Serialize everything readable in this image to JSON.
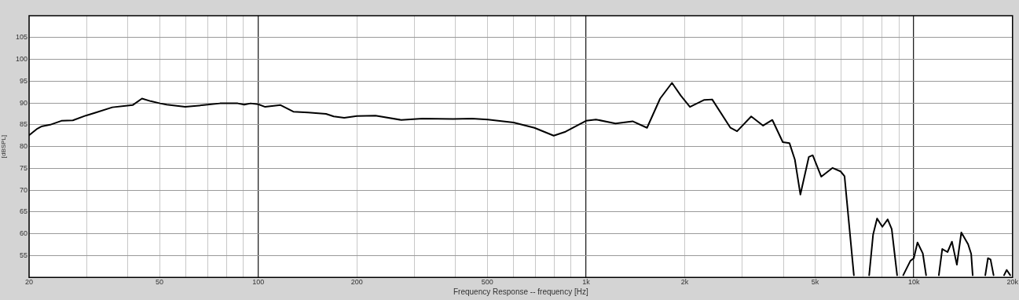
{
  "chart_data": {
    "type": "line",
    "xlabel": "Frequency Response -- frequency [Hz]",
    "ylabel": "[dBSPL]",
    "log": "x",
    "grid": true,
    "legend": false,
    "marker": "none",
    "line_style": "solid",
    "xlim": [
      20,
      20000
    ],
    "ylim": [
      50,
      110
    ],
    "xticks": [
      20,
      {
        "value": 30,
        "label": null
      },
      {
        "value": 40,
        "label": null
      },
      50,
      {
        "value": 60,
        "label": null
      },
      {
        "value": 70,
        "label": null
      },
      {
        "value": 80,
        "label": null
      },
      {
        "value": 90,
        "label": null
      },
      100,
      200,
      {
        "value": 300,
        "label": null
      },
      {
        "value": 400,
        "label": null
      },
      500,
      {
        "value": 600,
        "label": null
      },
      {
        "value": 700,
        "label": null
      },
      {
        "value": 800,
        "label": null
      },
      {
        "value": 900,
        "label": null
      },
      {
        "value": 1000,
        "label": "1k"
      },
      {
        "value": 2000,
        "label": "2k"
      },
      {
        "value": 3000,
        "label": null
      },
      {
        "value": 4000,
        "label": null
      },
      {
        "value": 5000,
        "label": "5k"
      },
      {
        "value": 6000,
        "label": null
      },
      {
        "value": 7000,
        "label": null
      },
      {
        "value": 8000,
        "label": null
      },
      {
        "value": 9000,
        "label": null
      },
      {
        "value": 10000,
        "label": "10k"
      },
      {
        "value": 20000,
        "label": "20k"
      }
    ],
    "yticks": [
      55,
      60,
      65,
      70,
      75,
      80,
      85,
      90,
      95,
      100,
      105
    ],
    "series": [
      {
        "color": "#000000",
        "x": [
          20,
          21.2,
          21.8,
          23.2,
          25.1,
          27.2,
          29.8,
          32,
          35.9,
          39.9,
          41.4,
          44.2,
          47,
          50.2,
          52.6,
          59.9,
          68.2,
          76.5,
          86.6,
          90.7,
          94.8,
          100,
          105,
          117,
          128,
          142,
          161,
          170,
          183,
          200,
          228,
          273,
          317,
          393,
          449,
          502,
          601,
          696,
          797,
          866,
          1000,
          1072,
          1230,
          1387,
          1535,
          1683,
          1829,
          1945,
          2075,
          2295,
          2426,
          2758,
          2889,
          3191,
          3469,
          3702,
          3984,
          4174,
          4336,
          4507,
          4782,
          4915,
          5218,
          5651,
          5979,
          6146,
          6563,
          6900,
          7307,
          7512,
          7725,
          8016,
          8322,
          8561,
          8892,
          9100,
          9283,
          9762,
          10000,
          10260,
          10650,
          10900,
          11400,
          11920,
          12210,
          12670,
          13070,
          13530,
          13960,
          14640,
          14960,
          15120,
          15800,
          16520,
          16830,
          17140,
          17510,
          18200,
          18850,
          19200,
          19680
        ],
        "values": [
          82.6,
          84.1,
          84.6,
          85,
          85.9,
          86,
          87.1,
          87.8,
          89,
          89.4,
          89.5,
          91,
          90.4,
          89.9,
          89.6,
          89.1,
          89.5,
          89.9,
          89.9,
          89.6,
          89.9,
          89.7,
          89.1,
          89.5,
          88,
          87.8,
          87.5,
          86.9,
          86.6,
          87,
          87.1,
          86.1,
          86.4,
          86.3,
          86.4,
          86.2,
          85.5,
          84.3,
          82.5,
          83.4,
          85.9,
          86.2,
          85.3,
          85.8,
          84.3,
          91,
          94.6,
          91.7,
          89.1,
          90.7,
          90.8,
          84.3,
          83.5,
          86.9,
          84.8,
          86.1,
          81,
          80.8,
          77,
          69,
          77.6,
          78,
          73.1,
          75.1,
          74.3,
          73.2,
          50.5,
          null,
          50.5,
          59.8,
          63.5,
          61.6,
          63.3,
          61.1,
          50.5,
          null,
          50.5,
          53.8,
          54.4,
          58,
          55.5,
          50.5,
          null,
          50.5,
          56.5,
          55.8,
          58.2,
          52.9,
          60.3,
          57.6,
          55.4,
          50.5,
          null,
          50.5,
          54.4,
          54.1,
          50.5,
          null,
          50.5,
          51.7,
          50.5
        ]
      }
    ]
  }
}
